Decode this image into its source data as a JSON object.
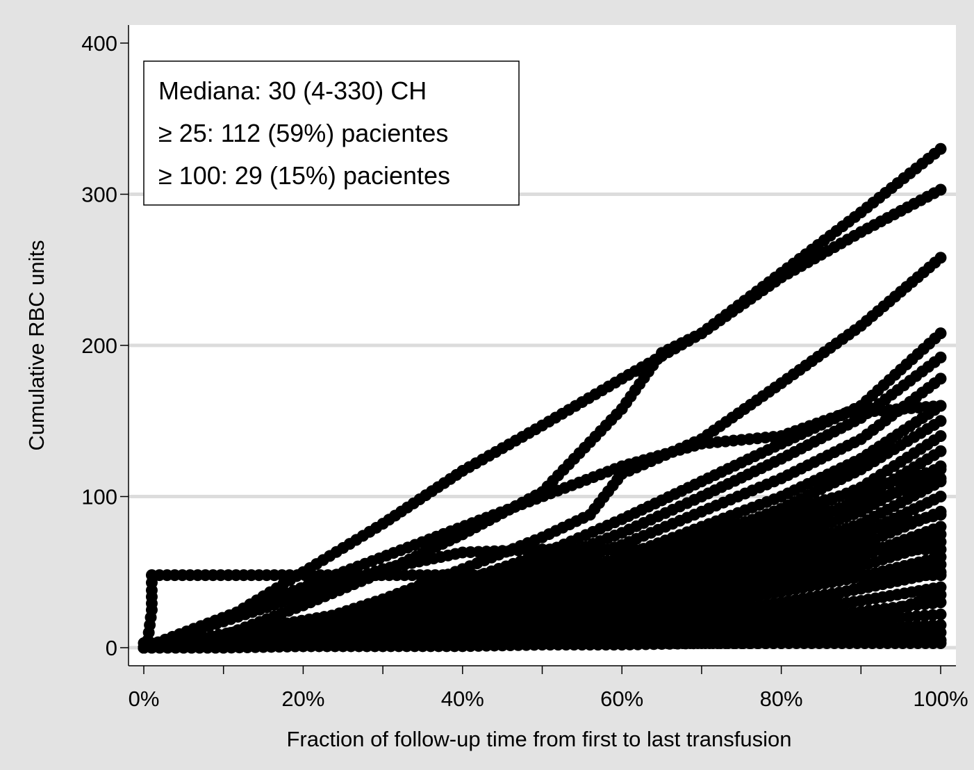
{
  "chart_data": {
    "type": "line",
    "title": "",
    "xlabel": "Fraction of follow-up time from first to last transfusion",
    "ylabel": "Cumulative RBC units",
    "xlim": [
      -2,
      102
    ],
    "ylim": [
      -12,
      412
    ],
    "x_ticks": [
      0,
      20,
      40,
      60,
      80,
      100
    ],
    "x_tick_labels": [
      "0%",
      "20%",
      "40%",
      "60%",
      "80%",
      "100%"
    ],
    "x_minor_ticks": [
      10,
      30,
      50,
      70,
      90
    ],
    "y_ticks": [
      0,
      100,
      200,
      300,
      400
    ],
    "y_tick_labels": [
      "0",
      "100",
      "200",
      "300",
      "400"
    ],
    "grid": {
      "horizontal": true,
      "color": "#dcdcdc"
    },
    "legend": "none",
    "annotation": {
      "position": "top-left",
      "lines": [
        "Mediana: 30 (4-330) CH",
        "≥ 25: 112 (59%) pacientes",
        "≥ 100: 29 (15%) pacientes"
      ]
    },
    "marker_color": "#000000",
    "series": [
      {
        "x": [
          0,
          10,
          20,
          30,
          40,
          50,
          60,
          70,
          80,
          90,
          100
        ],
        "y": [
          0,
          18,
          50,
          82,
          117,
          147,
          178,
          208,
          248,
          288,
          330
        ]
      },
      {
        "x": [
          0,
          10,
          20,
          30,
          40,
          50,
          60,
          65,
          70,
          80,
          90,
          100
        ],
        "y": [
          0,
          8,
          28,
          50,
          75,
          103,
          158,
          195,
          208,
          245,
          275,
          303
        ]
      },
      {
        "x": [
          0,
          10,
          20,
          30,
          40,
          50,
          56,
          60,
          70,
          80,
          90,
          100
        ],
        "y": [
          0,
          5,
          15,
          32,
          52,
          73,
          88,
          115,
          138,
          175,
          213,
          258
        ]
      },
      {
        "x": [
          0,
          10,
          20,
          30,
          40,
          50,
          60,
          70,
          80,
          90,
          100
        ],
        "y": [
          0,
          5,
          14,
          28,
          44,
          62,
          85,
          110,
          135,
          160,
          208
        ]
      },
      {
        "x": [
          0,
          10,
          20,
          30,
          40,
          50,
          60,
          70,
          80,
          90,
          100
        ],
        "y": [
          0,
          4,
          12,
          24,
          39,
          56,
          76,
          100,
          125,
          152,
          192
        ]
      },
      {
        "x": [
          0,
          10,
          20,
          30,
          40,
          50,
          60,
          70,
          80,
          90,
          100
        ],
        "y": [
          0,
          3,
          10,
          21,
          34,
          50,
          68,
          90,
          112,
          138,
          178
        ]
      },
      {
        "x": [
          0,
          10,
          20,
          30,
          40,
          50,
          60,
          70,
          80,
          90,
          100
        ],
        "y": [
          0,
          3,
          9,
          18,
          30,
          44,
          60,
          80,
          100,
          125,
          160
        ]
      },
      {
        "x": [
          0,
          10,
          20,
          30,
          40,
          50,
          60,
          70,
          80,
          90,
          100
        ],
        "y": [
          0,
          2,
          8,
          16,
          27,
          40,
          54,
          72,
          92,
          118,
          150
        ]
      },
      {
        "x": [
          0,
          10,
          20,
          30,
          40,
          50,
          60,
          70,
          80,
          90,
          100
        ],
        "y": [
          0,
          2,
          7,
          14,
          24,
          36,
          50,
          66,
          84,
          106,
          140
        ]
      },
      {
        "x": [
          0,
          10,
          20,
          30,
          40,
          50,
          60,
          70,
          80,
          90,
          100
        ],
        "y": [
          0,
          2,
          6,
          12,
          21,
          32,
          45,
          60,
          77,
          98,
          130
        ]
      },
      {
        "x": [
          0,
          10,
          20,
          30,
          40,
          50,
          60,
          70,
          80,
          90,
          100
        ],
        "y": [
          0,
          2,
          5,
          11,
          19,
          29,
          41,
          55,
          71,
          90,
          120
        ]
      },
      {
        "x": [
          0,
          10,
          20,
          30,
          40,
          50,
          60,
          70,
          80,
          90,
          100
        ],
        "y": [
          0,
          1,
          5,
          10,
          17,
          26,
          37,
          50,
          65,
          82,
          110
        ]
      },
      {
        "x": [
          0,
          10,
          20,
          30,
          40,
          50,
          60,
          70,
          80,
          90,
          100
        ],
        "y": [
          0,
          1,
          4,
          9,
          15,
          23,
          33,
          45,
          59,
          75,
          100
        ]
      },
      {
        "x": [
          0,
          10,
          20,
          30,
          40,
          50,
          60,
          70,
          80,
          90,
          100
        ],
        "y": [
          0,
          1,
          4,
          8,
          13,
          20,
          29,
          40,
          53,
          68,
          90
        ]
      },
      {
        "x": [
          0,
          10,
          20,
          30,
          40,
          50,
          60,
          70,
          80,
          90,
          100
        ],
        "y": [
          0,
          1,
          3,
          7,
          12,
          18,
          26,
          36,
          47,
          61,
          80
        ]
      },
      {
        "x": [
          0,
          10,
          20,
          30,
          40,
          50,
          60,
          70,
          80,
          90,
          100
        ],
        "y": [
          0,
          1,
          3,
          6,
          10,
          16,
          23,
          32,
          42,
          54,
          70
        ]
      },
      {
        "x": [
          0,
          10,
          20,
          30,
          40,
          50,
          60,
          70,
          80,
          90,
          100
        ],
        "y": [
          0,
          1,
          3,
          5,
          9,
          14,
          20,
          28,
          37,
          47,
          60
        ]
      },
      {
        "x": [
          0,
          10,
          20,
          30,
          40,
          50,
          60,
          70,
          80,
          90,
          100
        ],
        "y": [
          0,
          1,
          2,
          4,
          7,
          11,
          16,
          22,
          30,
          39,
          50
        ]
      },
      {
        "x": [
          0,
          10,
          20,
          30,
          40,
          50,
          60,
          70,
          80,
          90,
          100
        ],
        "y": [
          0,
          1,
          2,
          4,
          6,
          9,
          13,
          18,
          24,
          31,
          40
        ]
      },
      {
        "x": [
          0,
          10,
          20,
          30,
          40,
          50,
          60,
          70,
          80,
          90,
          100
        ],
        "y": [
          0,
          1,
          2,
          3,
          5,
          7,
          10,
          14,
          19,
          24,
          30
        ]
      },
      {
        "x": [
          0,
          10,
          20,
          30,
          40,
          50,
          60,
          70,
          80,
          90,
          100
        ],
        "y": [
          0,
          1,
          1,
          2,
          4,
          5,
          8,
          11,
          14,
          18,
          22
        ]
      },
      {
        "x": [
          0,
          10,
          20,
          30,
          40,
          50,
          60,
          70,
          80,
          90,
          100
        ],
        "y": [
          0,
          1,
          1,
          2,
          3,
          4,
          6,
          8,
          10,
          13,
          15
        ]
      },
      {
        "x": [
          0,
          10,
          20,
          30,
          40,
          50,
          60,
          70,
          80,
          90,
          100
        ],
        "y": [
          0,
          0,
          1,
          1,
          2,
          3,
          4,
          5,
          7,
          8,
          10
        ]
      },
      {
        "x": [
          0,
          10,
          20,
          30,
          40,
          50,
          60,
          70,
          80,
          90,
          100
        ],
        "y": [
          0,
          0,
          1,
          1,
          1,
          2,
          2,
          3,
          3,
          4,
          5
        ]
      },
      {
        "x": [
          0,
          0.5,
          1,
          1,
          1,
          100
        ],
        "y": [
          0,
          5,
          25,
          38,
          48,
          48
        ]
      },
      {
        "x": [
          0,
          30,
          40,
          50,
          100
        ],
        "y": [
          0,
          52,
          63,
          65,
          65
        ]
      },
      {
        "x": [
          0,
          60,
          70,
          80,
          88,
          100
        ],
        "y": [
          0,
          120,
          135,
          140,
          155,
          160
        ]
      },
      {
        "x": [
          0,
          20,
          40,
          60,
          80,
          100
        ],
        "y": [
          3,
          3,
          3,
          3,
          3,
          3
        ]
      },
      {
        "x": [
          0,
          40,
          60,
          80,
          100
        ],
        "y": [
          0,
          30,
          60,
          90,
          118
        ]
      },
      {
        "x": [
          0,
          50,
          70,
          90,
          100
        ],
        "y": [
          0,
          45,
          70,
          95,
          112
        ]
      },
      {
        "x": [
          0,
          60,
          80,
          100
        ],
        "y": [
          0,
          40,
          65,
          88
        ]
      },
      {
        "x": [
          0,
          70,
          85,
          100
        ],
        "y": [
          0,
          35,
          55,
          75
        ]
      },
      {
        "x": [
          0,
          80,
          90,
          100
        ],
        "y": [
          0,
          25,
          40,
          55
        ]
      },
      {
        "x": [
          0,
          85,
          100
        ],
        "y": [
          0,
          10,
          35
        ]
      }
    ]
  }
}
